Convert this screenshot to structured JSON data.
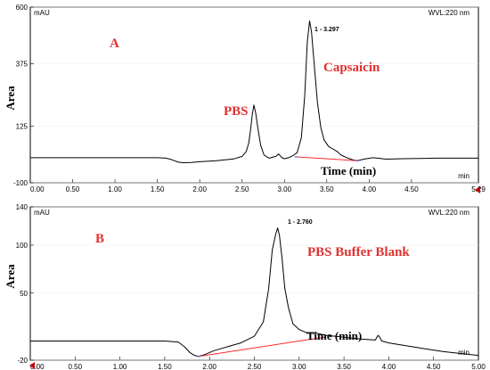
{
  "colors": {
    "annotation": "#e03030",
    "baseline": "#ff2a2a",
    "baseline_mark": "#3a4fd8",
    "trace": "#000000"
  },
  "chart_data": [
    {
      "type": "line",
      "panel_label": "A",
      "ylabel": "Area",
      "unit_label": "mAU",
      "detector_label": "WVL:220 nm",
      "xunit": "min",
      "time_annotation": "Time (min)",
      "xlim": [
        0,
        5.29
      ],
      "ylim": [
        -100,
        600
      ],
      "x_ticks": [
        "0.00",
        "0.50",
        "1.00",
        "1.50",
        "2.00",
        "2.50",
        "3.00",
        "3.50",
        "4.00",
        "4.50",
        "5.29"
      ],
      "y_ticks": [
        "-100",
        "125",
        "375",
        "600"
      ],
      "annotations": [
        "PBS",
        "Capsaicin"
      ],
      "peak_label": "1 - 3.297",
      "baseline_segment": {
        "x": [
          3.14,
          3.86
        ],
        "y": [
          3,
          -12
        ]
      },
      "series": [
        {
          "x": [
            0,
            1.5,
            1.6,
            1.65,
            1.7,
            1.75,
            1.8,
            1.9,
            2.0,
            2.2,
            2.4,
            2.5,
            2.55,
            2.58,
            2.6,
            2.62,
            2.64,
            2.66,
            2.69,
            2.72,
            2.76,
            2.82,
            2.9,
            2.93,
            2.95,
            2.97,
            3.0,
            3.05,
            3.1,
            3.15,
            3.2,
            3.24,
            3.27,
            3.297,
            3.32,
            3.35,
            3.39,
            3.43,
            3.47,
            3.52,
            3.57,
            3.62,
            3.67,
            3.75,
            3.8,
            3.86,
            3.95,
            4.05,
            4.2,
            4.4,
            4.6,
            4.8,
            5.0,
            5.29
          ],
          "y": [
            0,
            0,
            -2,
            -6,
            -12,
            -18,
            -20,
            -19,
            -16,
            -12,
            -5,
            5,
            25,
            60,
            110,
            170,
            210,
            180,
            110,
            50,
            10,
            -2,
            5,
            15,
            8,
            0,
            -4,
            0,
            8,
            20,
            80,
            250,
            460,
            545,
            500,
            380,
            220,
            120,
            70,
            45,
            35,
            25,
            10,
            -2,
            -8,
            -12,
            -5,
            0,
            -6,
            -4,
            -3,
            -2,
            -2,
            -2
          ]
        }
      ]
    },
    {
      "type": "line",
      "panel_label": "B",
      "ylabel": "Area",
      "unit_label": "mAU",
      "detector_label": "WVL:220 nm",
      "xunit": "min",
      "time_annotation": "Time (min)",
      "annotations": [
        "PBS Buffer Blank"
      ],
      "xlim": [
        0,
        5.0
      ],
      "ylim": [
        -20,
        140
      ],
      "x_ticks": [
        "0.00",
        "0.50",
        "1.00",
        "1.50",
        "2.00",
        "2.50",
        "3.00",
        "3.50",
        "4.00",
        "4.50",
        "5.00"
      ],
      "y_ticks": [
        "-20",
        "50",
        "100",
        "140"
      ],
      "peak_label": "1 - 2.760",
      "baseline_segment": {
        "x": [
          1.88,
          3.28
        ],
        "y": [
          -16,
          4
        ]
      },
      "series": [
        {
          "x": [
            0,
            1.5,
            1.65,
            1.72,
            1.78,
            1.83,
            1.88,
            1.95,
            2.05,
            2.2,
            2.35,
            2.5,
            2.6,
            2.66,
            2.7,
            2.74,
            2.76,
            2.78,
            2.81,
            2.84,
            2.88,
            2.93,
            3.0,
            3.1,
            3.2,
            3.3,
            3.5,
            3.7,
            3.85,
            3.88,
            3.9,
            3.92,
            4.0,
            4.2,
            4.4,
            4.6,
            4.8,
            5.0
          ],
          "y": [
            0,
            0,
            -1,
            -6,
            -12,
            -15,
            -16,
            -14,
            -10,
            -6,
            -2,
            5,
            20,
            55,
            95,
            112,
            118,
            110,
            85,
            55,
            35,
            18,
            12,
            8,
            8,
            6,
            4,
            2,
            1,
            6,
            4,
            0,
            -2,
            -5,
            -8,
            -11,
            -13,
            -15
          ]
        }
      ]
    }
  ]
}
